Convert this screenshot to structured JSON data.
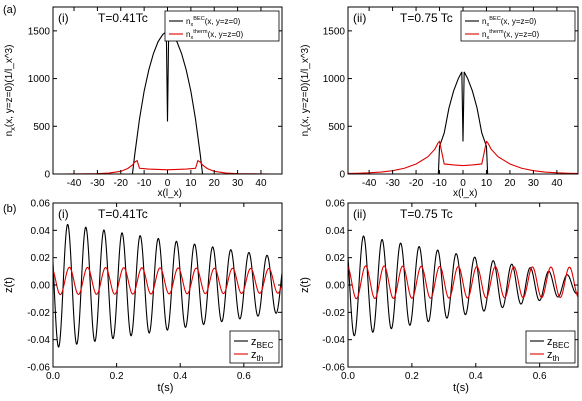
{
  "figure": {
    "row_labels": [
      "(a)",
      "(b)"
    ]
  },
  "chart_data": [
    {
      "type": "line",
      "panel": "(i)",
      "title": "T=0.41Tc",
      "xlabel": "x(l_x)",
      "ylabel": "n_x(x, y=z=0)(1/l_x^3)",
      "xlim": [
        -49,
        49
      ],
      "ylim": [
        0,
        1750
      ],
      "xticks": [
        -40,
        -30,
        -20,
        -10,
        0,
        10,
        20,
        30,
        40
      ],
      "yticks": [
        0,
        500,
        1000,
        1500
      ],
      "xtick_labels": [
        "-40",
        "-30",
        "-20",
        "-10",
        "0",
        "10",
        "20",
        "30",
        "40"
      ],
      "ytick_labels": [
        "0",
        "500",
        "1000",
        "1500"
      ],
      "legend": "top-right",
      "series": [
        {
          "name": "n_x^BEC(x, y=z=0)",
          "color": "#000000",
          "x": [
            -15,
            -14,
            -12,
            -10,
            -8,
            -6,
            -4,
            -2,
            -0.5,
            0,
            0.5,
            2,
            4,
            6,
            8,
            10,
            12,
            14,
            15
          ],
          "y": [
            0,
            207,
            573,
            868,
            1091,
            1264,
            1388,
            1463,
            1490,
            550,
            1490,
            1463,
            1388,
            1264,
            1091,
            868,
            573,
            207,
            0
          ]
        },
        {
          "name": "n_x^therm(x, y=z=0)",
          "color": "#e00000",
          "x": [
            -49,
            -45,
            -40,
            -35,
            -30,
            -25,
            -20,
            -17,
            -15,
            -14,
            -13,
            -12,
            -8,
            -4,
            -1,
            0,
            1,
            4,
            8,
            12,
            13,
            14,
            15,
            17,
            20,
            25,
            30,
            35,
            40,
            45,
            49
          ],
          "y": [
            0,
            0,
            1,
            2,
            4,
            10,
            28,
            58,
            95,
            125,
            140,
            60,
            52,
            48,
            45,
            44,
            45,
            48,
            52,
            60,
            140,
            125,
            95,
            58,
            28,
            10,
            4,
            2,
            1,
            0,
            0
          ]
        }
      ],
      "legend_entries": [
        "n_x^BEC(x, y=z=0)",
        "n_x^therm(x, y=z=0)"
      ]
    },
    {
      "type": "line",
      "panel": "(ii)",
      "title": "T=0.75 Tc",
      "xlabel": "x(l_x)",
      "ylabel": "n_x(x, y=z=0)(1/l_x^3)",
      "xlim": [
        -49,
        49
      ],
      "ylim": [
        0,
        1750
      ],
      "xticks": [
        -40,
        -30,
        -20,
        -10,
        0,
        10,
        20,
        30,
        40
      ],
      "yticks": [
        0,
        500,
        1000,
        1500
      ],
      "xtick_labels": [
        "-40",
        "-30",
        "-20",
        "-10",
        "0",
        "10",
        "20",
        "30",
        "40"
      ],
      "ytick_labels": [
        "0",
        "500",
        "1000",
        "1500"
      ],
      "legend": "top-right",
      "series": [
        {
          "name": "n_x^BEC(x, y=z=0)",
          "color": "#000000",
          "x": [
            -10.5,
            -10,
            -8,
            -6,
            -4,
            -2,
            -0.5,
            0,
            0.5,
            2,
            4,
            6,
            8,
            10,
            10.5
          ],
          "y": [
            0,
            290,
            430,
            690,
            870,
            1000,
            1070,
            340,
            1070,
            1000,
            870,
            690,
            430,
            290,
            0
          ]
        },
        {
          "name": "n_x^therm(x, y=z=0)",
          "color": "#e00000",
          "x": [
            -49,
            -45,
            -40,
            -35,
            -30,
            -25,
            -20,
            -15,
            -12,
            -10.5,
            -10,
            -8,
            -4,
            -1,
            0,
            1,
            4,
            8,
            10,
            10.5,
            12,
            15,
            20,
            25,
            30,
            35,
            40,
            45,
            49
          ],
          "y": [
            6,
            8,
            12,
            20,
            35,
            60,
            105,
            180,
            260,
            330,
            340,
            105,
            95,
            90,
            88,
            90,
            95,
            105,
            340,
            330,
            260,
            180,
            105,
            60,
            35,
            20,
            12,
            8,
            6
          ]
        }
      ],
      "legend_entries": [
        "n_x^BEC(x, y=z=0)",
        "n_x^therm(x, y=z=0)"
      ]
    },
    {
      "type": "line",
      "panel": "(i)",
      "title": "T=0.41Tc",
      "xlabel": "t(s)",
      "ylabel": "z(t)",
      "xlim": [
        0,
        0.72
      ],
      "ylim": [
        -0.06,
        0.06
      ],
      "xticks": [
        0.0,
        0.2,
        0.4,
        0.6
      ],
      "yticks": [
        -0.06,
        -0.04,
        -0.02,
        0.0,
        0.02,
        0.04,
        0.06
      ],
      "xtick_labels": [
        "0.0",
        "0.2",
        "0.4",
        "0.6"
      ],
      "ytick_labels": [
        "-0.06",
        "-0.04",
        "-0.02",
        "0.00",
        "0.02",
        "0.04",
        "0.06"
      ],
      "legend": "bottom-right",
      "oscillation_params": [
        {
          "name": "z_BEC",
          "offset": 0.0,
          "amplitude_start": 0.046,
          "amplitude_end": 0.02,
          "period": 0.057,
          "phase": 1.2
        },
        {
          "name": "z_th",
          "offset": 0.003,
          "amplitude_start": 0.01,
          "amplitude_end": 0.009,
          "period": 0.057,
          "phase": 0.6
        }
      ],
      "series": [
        {
          "name": "z_BEC",
          "color": "#000000"
        },
        {
          "name": "z_th",
          "color": "#e00000"
        }
      ],
      "legend_entries": [
        "z_BEC",
        "z_th"
      ]
    },
    {
      "type": "line",
      "panel": "(ii)",
      "title": "T=0.75 Tc",
      "xlabel": "t(s)",
      "ylabel": "z(t)",
      "xlim": [
        0,
        0.72
      ],
      "ylim": [
        -0.06,
        0.06
      ],
      "xticks": [
        0.0,
        0.2,
        0.4,
        0.6
      ],
      "yticks": [
        -0.06,
        -0.04,
        -0.02,
        0.0,
        0.02,
        0.04,
        0.06
      ],
      "xtick_labels": [
        "0.0",
        "0.2",
        "0.4",
        "0.6"
      ],
      "ytick_labels": [
        "-0.06",
        "-0.04",
        "-0.02",
        "0.00",
        "0.02",
        "0.04",
        "0.06"
      ],
      "legend": "bottom-right",
      "oscillation_params": [
        {
          "name": "z_BEC",
          "offset": 0.0,
          "amplitude_start": 0.038,
          "amplitude_end": 0.006,
          "period": 0.058,
          "phase": 1.0
        },
        {
          "name": "z_th",
          "offset": 0.002,
          "amplitude_start": 0.012,
          "amplitude_end": 0.011,
          "period": 0.058,
          "phase": 0.3
        }
      ],
      "series": [
        {
          "name": "z_BEC",
          "color": "#000000"
        },
        {
          "name": "z_th",
          "color": "#e00000"
        }
      ],
      "legend_entries": [
        "z_BEC",
        "z_th"
      ]
    }
  ]
}
